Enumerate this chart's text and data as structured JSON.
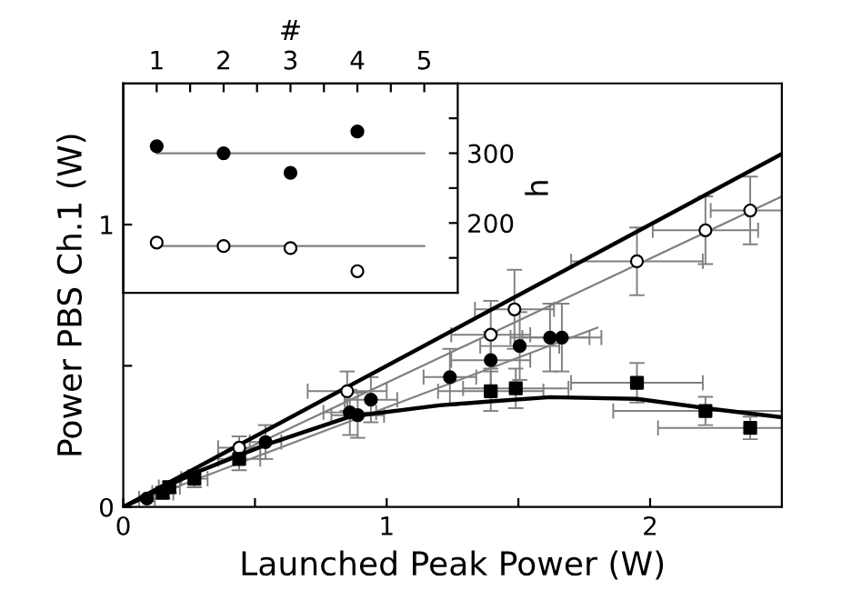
{
  "chart_data": [
    {
      "type": "scatter",
      "xlabel": "Launched Peak Power (W)",
      "ylabel": "Power PBS Ch.1 (W)",
      "xlim": [
        0,
        2.5
      ],
      "ylim": [
        0,
        1.5
      ],
      "xticks": [
        0,
        {
          "value": 0.5,
          "label": null
        },
        1,
        {
          "value": 1.5,
          "label": null
        },
        2
      ],
      "yticks": [
        0,
        {
          "value": 0.5,
          "label": null
        },
        1
      ],
      "grid": false,
      "legend": false,
      "series": [
        {
          "type": "line",
          "color": "#000000",
          "marker": "none",
          "x": [
            0,
            2.5
          ],
          "values": [
            0,
            1.25
          ]
        },
        {
          "type": "line",
          "color": "#808080",
          "marker": "none",
          "x": [
            0,
            2.5
          ],
          "values": [
            0,
            1.1
          ]
        },
        {
          "type": "line",
          "color": "#808080",
          "marker": "none",
          "x": [
            0,
            1.8
          ],
          "values": [
            0,
            0.635
          ]
        },
        {
          "type": "line",
          "color": "#000000",
          "marker": "none",
          "x": [
            0,
            0.27,
            0.54,
            0.86,
            1.2,
            1.395,
            1.62,
            1.95,
            2.21,
            2.5
          ],
          "values": [
            0,
            0.12,
            0.22,
            0.32,
            0.36,
            0.374,
            0.389,
            0.383,
            0.35,
            0.318
          ]
        },
        {
          "color": "#ffffff",
          "marker": "circle",
          "x": [
            0.44,
            0.85,
            1.395,
            1.485,
            1.95,
            2.21,
            2.38
          ],
          "values": [
            0.21,
            0.41,
            0.61,
            0.7,
            0.87,
            0.98,
            1.05
          ],
          "errors": [
            0.04,
            0.07,
            0.12,
            0.14,
            0.12,
            0.12,
            0.12
          ],
          "xerrors": [
            0.08,
            0.15,
            0.15,
            0.15,
            0.25,
            0.2,
            0.15
          ]
        },
        {
          "color": "#000000",
          "marker": "circle",
          "x": [
            0.09,
            0.54,
            0.86,
            0.89,
            0.94,
            1.24,
            1.395,
            1.505,
            1.62,
            1.665
          ],
          "values": [
            0.03,
            0.23,
            0.335,
            0.325,
            0.38,
            0.46,
            0.52,
            0.57,
            0.6,
            0.6
          ],
          "errors": [
            0.01,
            0.06,
            0.08,
            0.08,
            0.08,
            0.1,
            0.1,
            0.12,
            0.12,
            0.12
          ],
          "xerrors": [
            0.03,
            0.06,
            0.1,
            0.1,
            0.1,
            0.1,
            0.15,
            0.15,
            0.15,
            0.15
          ]
        },
        {
          "color": "#000000",
          "marker": "square",
          "x": [
            0.15,
            0.175,
            0.27,
            0.28,
            0.44,
            1.395,
            1.49,
            1.95,
            2.21,
            2.38
          ],
          "values": [
            0.05,
            0.07,
            0.1,
            null,
            0.17,
            0.41,
            0.42,
            0.44,
            0.34,
            0.28
          ],
          "errors": [
            0.02,
            0.02,
            0.03,
            null,
            0.04,
            0.07,
            0.07,
            0.07,
            0.05,
            0.04
          ],
          "xerrors": [
            0.04,
            0.04,
            0.05,
            null,
            0.08,
            0.2,
            0.2,
            0.25,
            0.35,
            0.35
          ]
        }
      ]
    },
    {
      "type": "scatter",
      "xlabel": "#",
      "ylabel": "h",
      "xlim": [
        0.5,
        5.5
      ],
      "xticks": [
        1,
        {
          "value": 1.5,
          "label": null
        },
        2,
        {
          "value": 2.5,
          "label": null
        },
        3,
        {
          "value": 3.5,
          "label": null
        },
        4,
        {
          "value": 4.5,
          "label": null
        },
        5
      ],
      "ylim": [
        100,
        400
      ],
      "yticks": [
        {
          "value": 150,
          "label": null
        },
        200,
        {
          "value": 250,
          "label": null
        },
        300,
        {
          "value": 350,
          "label": null
        }
      ],
      "grid": false,
      "legend": false,
      "series": [
        {
          "type": "line",
          "color": "#808080",
          "marker": "none",
          "x": [
            1,
            5
          ],
          "values": [
            300,
            300
          ]
        },
        {
          "type": "line",
          "color": "#808080",
          "marker": "none",
          "x": [
            1,
            5
          ],
          "values": [
            167,
            167
          ]
        },
        {
          "color": "#000000",
          "marker": "circle",
          "x": [
            1,
            2,
            3,
            4
          ],
          "values": [
            310,
            300,
            272,
            331
          ]
        },
        {
          "color": "#ffffff",
          "marker": "circle",
          "x": [
            1,
            2,
            3,
            4
          ],
          "values": [
            172,
            167,
            164,
            131
          ]
        }
      ]
    }
  ]
}
